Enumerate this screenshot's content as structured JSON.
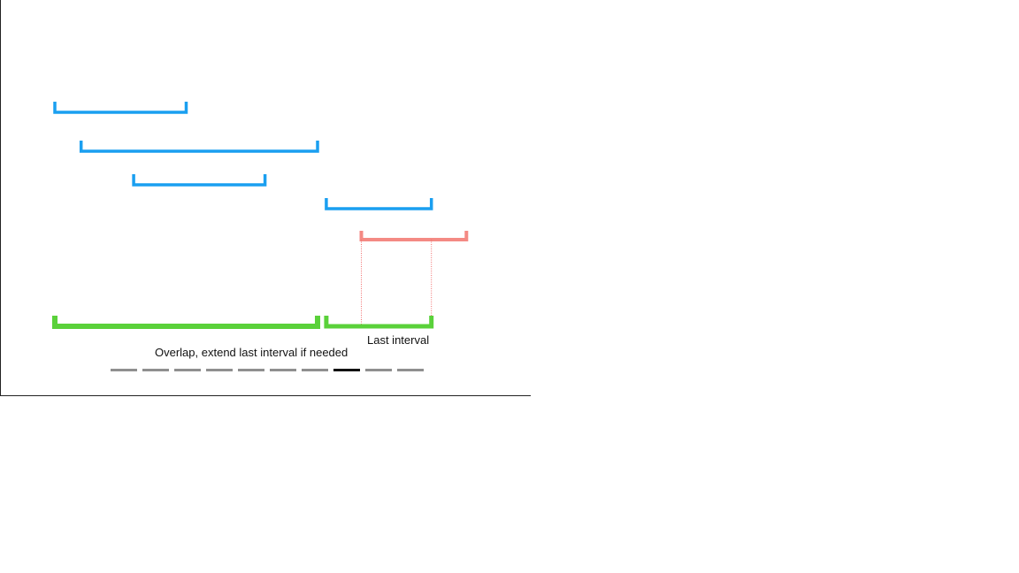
{
  "diagram": {
    "colors": {
      "input": "#1a9ff0",
      "current": "#f48a84",
      "merged": "#5ad13a",
      "guide": "#f26d6d",
      "pager": "#8f8f8f",
      "pager_active": "#111111"
    },
    "input_intervals": [
      {
        "start": 0,
        "end": 15
      },
      {
        "start": 3,
        "end": 30
      },
      {
        "start": 9,
        "end": 24
      },
      {
        "start": 31,
        "end": 43
      }
    ],
    "current_interval": {
      "start": 35,
      "end": 47
    },
    "merged_intervals": [
      {
        "start": 0,
        "end": 30
      },
      {
        "start": 31,
        "end": 43
      }
    ],
    "last_interval_label": "Last interval",
    "caption": "Overlap, extend last interval if needed"
  },
  "pager": {
    "total": 10,
    "active_index": 7
  }
}
